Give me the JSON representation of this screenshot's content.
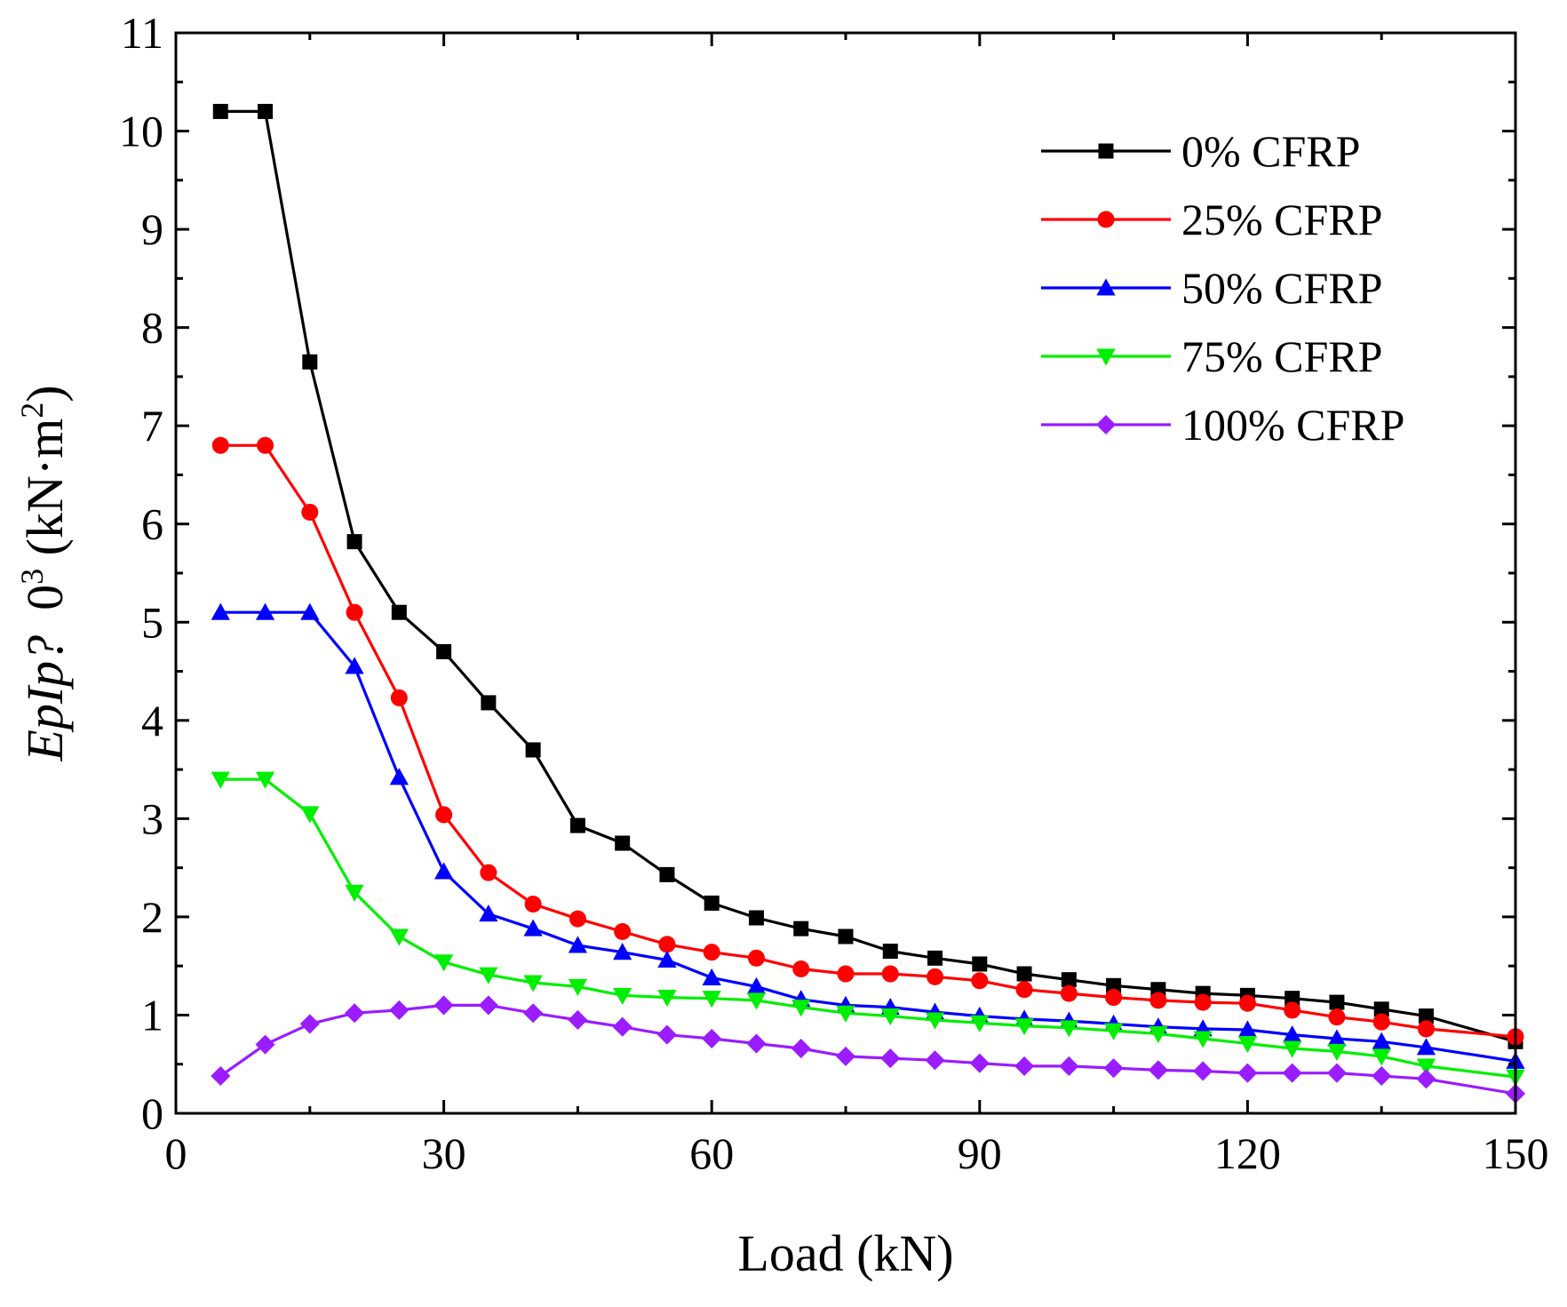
{
  "chart_data": {
    "type": "line",
    "xlabel": "Load (kN)",
    "ylabel": {
      "italic_part": "EpIp?",
      "rest": "0",
      "superscript": "3",
      "unit_start": " (kN·m",
      "unit_superscript": "2",
      "unit_end": ")"
    },
    "xlim": [
      0,
      150
    ],
    "ylim": [
      0,
      11
    ],
    "xticks": [
      0,
      30,
      60,
      90,
      120,
      150
    ],
    "yticks": [
      0,
      1,
      2,
      3,
      4,
      5,
      6,
      7,
      8,
      9,
      10,
      11
    ],
    "grid": false,
    "legend_position": "top-right",
    "series": [
      {
        "name": "0% CFRP",
        "color": "#000000",
        "marker": "square",
        "x": [
          5,
          10,
          15,
          20,
          25,
          30,
          35,
          40,
          45,
          50,
          55,
          60,
          65,
          70,
          75,
          80,
          85,
          90,
          95,
          100,
          105,
          110,
          115,
          120,
          125,
          130,
          135,
          140,
          150
        ],
        "y": [
          10.2,
          10.2,
          7.65,
          5.82,
          5.1,
          4.7,
          4.18,
          3.7,
          2.93,
          2.75,
          2.43,
          2.14,
          1.99,
          1.88,
          1.8,
          1.65,
          1.58,
          1.52,
          1.42,
          1.36,
          1.3,
          1.26,
          1.22,
          1.2,
          1.17,
          1.13,
          1.06,
          0.99,
          0.73
        ]
      },
      {
        "name": "25% CFRP",
        "color": "#ff0000",
        "marker": "circle",
        "x": [
          5,
          10,
          15,
          20,
          25,
          30,
          35,
          40,
          45,
          50,
          55,
          60,
          65,
          70,
          75,
          80,
          85,
          90,
          95,
          100,
          105,
          110,
          115,
          120,
          125,
          130,
          135,
          140,
          150
        ],
        "y": [
          6.8,
          6.8,
          6.12,
          5.1,
          4.23,
          3.04,
          2.45,
          2.13,
          1.98,
          1.85,
          1.72,
          1.64,
          1.58,
          1.47,
          1.42,
          1.42,
          1.39,
          1.35,
          1.26,
          1.22,
          1.18,
          1.15,
          1.13,
          1.12,
          1.05,
          0.98,
          0.93,
          0.86,
          0.78
        ]
      },
      {
        "name": "50% CFRP",
        "color": "#0000ff",
        "marker": "triangle-up",
        "x": [
          5,
          10,
          15,
          20,
          25,
          30,
          35,
          40,
          45,
          50,
          55,
          60,
          65,
          70,
          75,
          80,
          85,
          90,
          95,
          100,
          105,
          110,
          115,
          120,
          125,
          130,
          135,
          140,
          150
        ],
        "y": [
          5.1,
          5.1,
          5.1,
          4.55,
          3.42,
          2.46,
          2.03,
          1.88,
          1.71,
          1.64,
          1.56,
          1.38,
          1.29,
          1.16,
          1.1,
          1.08,
          1.03,
          0.99,
          0.96,
          0.94,
          0.91,
          0.88,
          0.86,
          0.85,
          0.8,
          0.76,
          0.73,
          0.67,
          0.53
        ]
      },
      {
        "name": "75% CFRP",
        "color": "#00ee00",
        "marker": "triangle-down",
        "x": [
          5,
          10,
          15,
          20,
          25,
          30,
          35,
          40,
          45,
          50,
          55,
          60,
          65,
          70,
          75,
          80,
          85,
          90,
          95,
          100,
          105,
          110,
          115,
          120,
          125,
          130,
          135,
          140,
          150
        ],
        "y": [
          3.4,
          3.4,
          3.05,
          2.25,
          1.8,
          1.54,
          1.41,
          1.33,
          1.29,
          1.2,
          1.18,
          1.17,
          1.15,
          1.08,
          1.02,
          0.99,
          0.95,
          0.92,
          0.89,
          0.87,
          0.84,
          0.81,
          0.76,
          0.71,
          0.66,
          0.63,
          0.58,
          0.48,
          0.37
        ]
      },
      {
        "name": "100% CFRP",
        "color": "#9a1cff",
        "marker": "diamond",
        "x": [
          5,
          10,
          15,
          20,
          25,
          30,
          35,
          40,
          45,
          50,
          55,
          60,
          65,
          70,
          75,
          80,
          85,
          90,
          95,
          100,
          105,
          110,
          115,
          120,
          125,
          130,
          135,
          140,
          150
        ],
        "y": [
          0.38,
          0.7,
          0.91,
          1.02,
          1.05,
          1.1,
          1.1,
          1.02,
          0.95,
          0.88,
          0.8,
          0.76,
          0.71,
          0.66,
          0.58,
          0.56,
          0.54,
          0.51,
          0.48,
          0.48,
          0.46,
          0.44,
          0.43,
          0.41,
          0.41,
          0.41,
          0.38,
          0.35,
          0.2
        ]
      }
    ]
  }
}
